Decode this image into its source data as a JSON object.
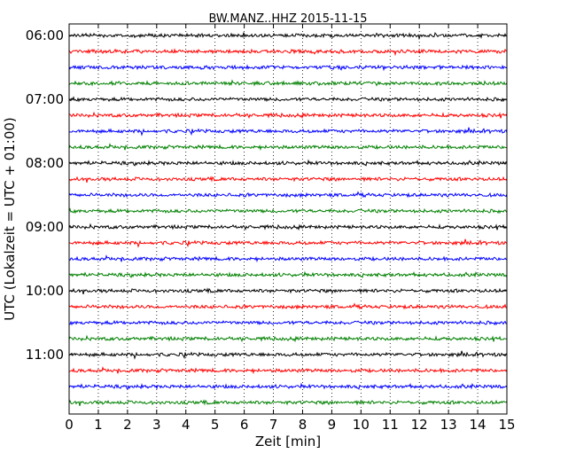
{
  "chart_data": {
    "type": "line",
    "title": "BW.MANZ..HHZ 2015-11-15",
    "xlabel": "Zeit  [min]",
    "ylabel": "UTC (Lokalzeit = UTC + 01:00)",
    "xlim": [
      0,
      15
    ],
    "x_ticks": [
      "0",
      "1",
      "2",
      "3",
      "4",
      "5",
      "6",
      "7",
      "8",
      "9",
      "10",
      "11",
      "12",
      "13",
      "14",
      "15"
    ],
    "y_ticks": [
      "06:00",
      "07:00",
      "08:00",
      "09:00",
      "10:00",
      "11:00"
    ],
    "grid": "vertical dotted at each minute",
    "trace_interval_min": 15,
    "traces": [
      {
        "start": "06:00",
        "color": "#000000"
      },
      {
        "start": "06:15",
        "color": "#ff0000"
      },
      {
        "start": "06:30",
        "color": "#0000ff"
      },
      {
        "start": "06:45",
        "color": "#008000"
      },
      {
        "start": "07:00",
        "color": "#000000"
      },
      {
        "start": "07:15",
        "color": "#ff0000"
      },
      {
        "start": "07:30",
        "color": "#0000ff"
      },
      {
        "start": "07:45",
        "color": "#008000"
      },
      {
        "start": "08:00",
        "color": "#000000"
      },
      {
        "start": "08:15",
        "color": "#ff0000"
      },
      {
        "start": "08:30",
        "color": "#0000ff"
      },
      {
        "start": "08:45",
        "color": "#008000"
      },
      {
        "start": "09:00",
        "color": "#000000"
      },
      {
        "start": "09:15",
        "color": "#ff0000"
      },
      {
        "start": "09:30",
        "color": "#0000ff"
      },
      {
        "start": "09:45",
        "color": "#008000"
      },
      {
        "start": "10:00",
        "color": "#000000"
      },
      {
        "start": "10:15",
        "color": "#ff0000"
      },
      {
        "start": "10:30",
        "color": "#0000ff"
      },
      {
        "start": "10:45",
        "color": "#008000"
      },
      {
        "start": "11:00",
        "color": "#000000"
      },
      {
        "start": "11:15",
        "color": "#ff0000"
      },
      {
        "start": "11:30",
        "color": "#0000ff"
      },
      {
        "start": "11:45",
        "color": "#008000"
      }
    ]
  }
}
